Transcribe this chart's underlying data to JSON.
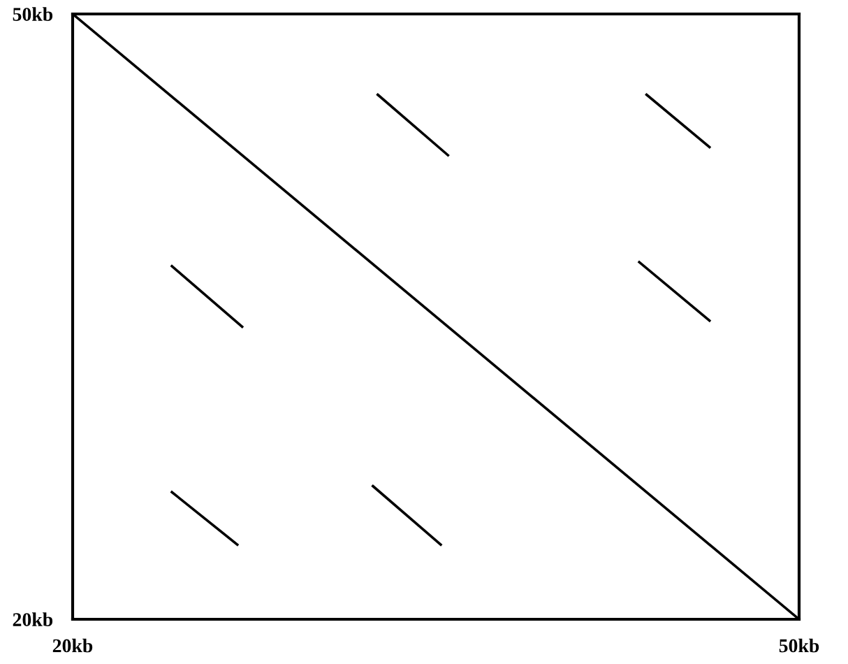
{
  "chart_data": {
    "type": "line",
    "series": [
      {
        "color": "#000000",
        "x": [
          20,
          50
        ],
        "values": [
          50,
          20
        ]
      },
      {
        "color": "#000000",
        "x": [
          32.6,
          35.5
        ],
        "values": [
          46.0,
          43.0
        ]
      },
      {
        "color": "#000000",
        "x": [
          43.7,
          46.3
        ],
        "values": [
          46.0,
          43.4
        ]
      },
      {
        "color": "#000000",
        "x": [
          24.1,
          27.0
        ],
        "values": [
          37.5,
          34.5
        ]
      },
      {
        "color": "#000000",
        "x": [
          43.4,
          46.3
        ],
        "values": [
          37.7,
          34.8
        ]
      },
      {
        "color": "#000000",
        "x": [
          24.1,
          26.8
        ],
        "values": [
          26.3,
          23.7
        ]
      },
      {
        "color": "#000000",
        "x": [
          32.4,
          35.2
        ],
        "values": [
          26.6,
          23.7
        ]
      }
    ],
    "xlim": [
      20,
      50
    ],
    "ylim": [
      20,
      50
    ],
    "xticks": [
      {
        "value": 20,
        "label": "20kb"
      },
      {
        "value": 50,
        "label": "50kb"
      }
    ],
    "yticks": [
      {
        "value": 20,
        "label": "20kb"
      },
      {
        "value": 50,
        "label": "50kb"
      }
    ],
    "marker": "none",
    "line_style": "solid"
  }
}
